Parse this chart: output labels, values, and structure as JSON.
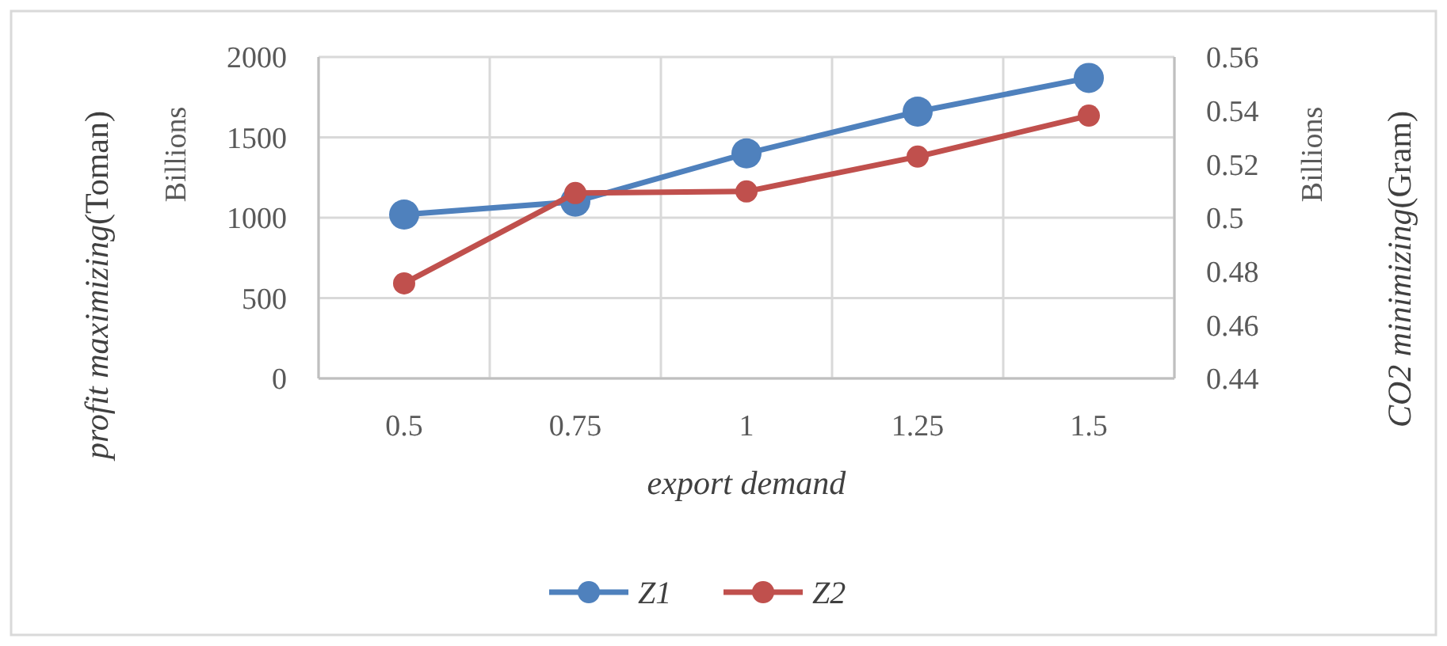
{
  "chart_data": {
    "type": "line",
    "xlabel": "export demand",
    "ylabel": "profit maximizing(Toman)",
    "y2label": "CO2 minimizing(Gram)",
    "annotations": [
      "Billions",
      "Billions"
    ],
    "categories": [
      "0.5",
      "0.75",
      "1",
      "1.25",
      "1.5"
    ],
    "series": [
      {
        "name": "Z1",
        "color": "#4f81bd",
        "values": [
          1020,
          1100,
          1400,
          1660,
          1870
        ]
      },
      {
        "name": "Z2",
        "color": "#c0504d",
        "axis": "y2",
        "values": [
          0.4755,
          0.5092,
          0.5098,
          0.5228,
          0.5381
        ]
      }
    ],
    "ylim": [
      0,
      2000
    ],
    "yticks": [
      0,
      500,
      1000,
      1500,
      2000
    ],
    "y2lim": [
      0.44,
      0.56
    ],
    "y2ticks": [
      0.44,
      0.46,
      0.48,
      {
        "value": 0.5,
        "label": "0.5"
      },
      0.52,
      0.54,
      0.56
    ],
    "grid": true,
    "legend": "bottom",
    "marker": "circle",
    "line_style": "solid"
  }
}
